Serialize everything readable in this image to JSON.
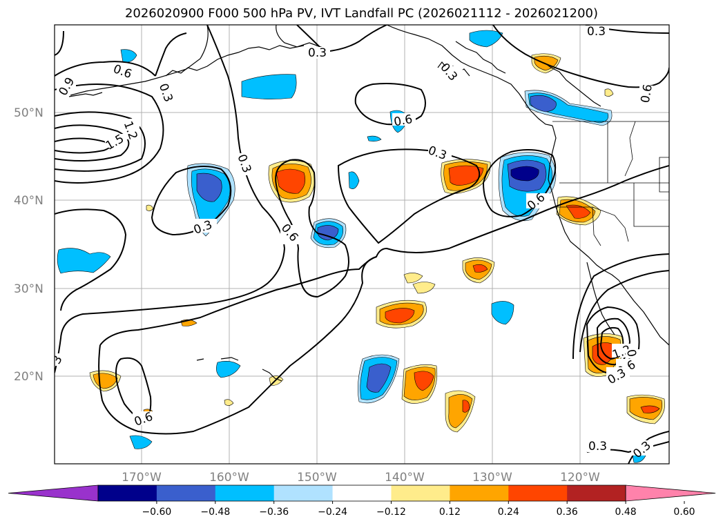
{
  "title": "2026020900 F000 500 hPa PV, IVT Landfall PC (2026021112 - 2026021200)",
  "lat_labels": [
    "50°N",
    "40°N",
    "30°N",
    "20°N"
  ],
  "lon_labels": [
    "170°W",
    "160°W",
    "150°W",
    "140°W",
    "130°W",
    "120°W"
  ],
  "colorbar": {
    "tick_labels": [
      "−0.60",
      "−0.48",
      "−0.36",
      "−0.24",
      "−0.12",
      "0.12",
      "0.24",
      "0.36",
      "0.48",
      "0.60"
    ],
    "colors": [
      "#9932cc",
      "#00008b",
      "#3a5fcd",
      "#00bfff",
      "#b0e2ff",
      "#ffffff",
      "#ffec8b",
      "#ffa500",
      "#ff4500",
      "#b22222",
      "#ff82ab"
    ]
  },
  "contour_labels": {
    "c_03_topright": "0.3",
    "c_03_topcenter": "0.3",
    "c_03_alaska": "0.3",
    "c_06_topleft": "0.6",
    "c_09_left": "0.9",
    "c_03_left": "0.3",
    "c_12_left": "1.2",
    "c_15_left": "1.5",
    "c_03_mid": "0.3",
    "c_06_center": "0.6",
    "c_03_center": "0.3",
    "c_03_lowleft": "0.3",
    "c_06_midleft": "0.6",
    "c_06_coast": "0.6",
    "c_06_right": "0.6",
    "c_06_bottomleft": "0.6",
    "c_12_bottomright": "1.2",
    "c_09_bottomright": "0.9",
    "c_06_bottomright": "0.6",
    "c_03_bottomright": "0.3",
    "c_03_bottom1": "0.3",
    "c_03_bottom2": "0.3",
    "c_3_edge": "3"
  }
}
